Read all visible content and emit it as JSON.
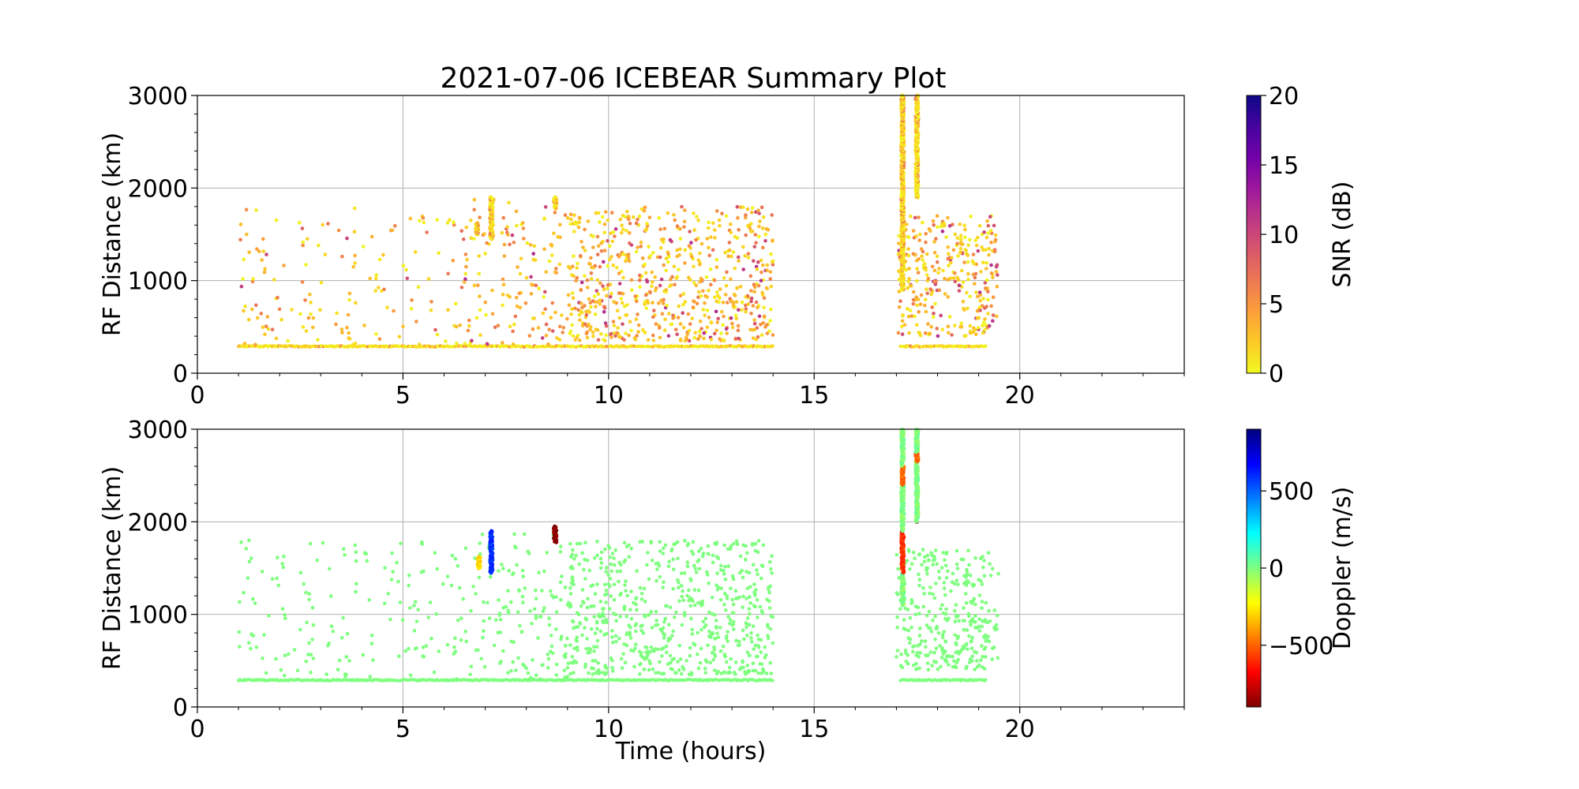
{
  "title": "2021-07-06 ICEBEAR Summary Plot",
  "chart_data": [
    {
      "type": "scatter",
      "panel": "top",
      "title": "2021-07-06 ICEBEAR Summary Plot",
      "xlabel": "",
      "ylabel": "RF Distance (km)",
      "xlim": [
        0,
        24
      ],
      "ylim": [
        0,
        3000
      ],
      "xticks": [
        0,
        5,
        10,
        15,
        20
      ],
      "yticks": [
        0,
        1000,
        2000,
        3000
      ],
      "grid": true,
      "colorbar": {
        "label": "SNR (dB)",
        "range": [
          0,
          20
        ],
        "ticks": [
          0,
          5,
          10,
          15,
          20
        ],
        "colormap": "plasma_r",
        "colors": [
          "#f0f921",
          "#fdca26",
          "#fb9f3a",
          "#ed7953",
          "#d8576b",
          "#bd3786",
          "#9c179e",
          "#7201a8",
          "#46039f",
          "#0d0887"
        ]
      },
      "baseline": {
        "y": 290,
        "segments": [
          [
            1.0,
            14.0
          ],
          [
            17.1,
            19.2
          ]
        ]
      },
      "background": {
        "segments": [
          {
            "x": [
              1.0,
              6.5
            ],
            "y": [
              300,
              1800
            ],
            "count": 150
          },
          {
            "x": [
              6.5,
              9.0
            ],
            "y": [
              300,
              1900
            ],
            "count": 140
          },
          {
            "x": [
              9.0,
              14.0
            ],
            "y": [
              350,
              1800
            ],
            "count": 650
          },
          {
            "x": [
              17.0,
              19.5
            ],
            "y": [
              400,
              1700
            ],
            "count": 320
          }
        ]
      },
      "streaks": [
        {
          "x": 7.15,
          "y": [
            1450,
            1900
          ],
          "weight": 1
        },
        {
          "x": 6.8,
          "y": [
            1500,
            1620
          ],
          "weight": 1
        },
        {
          "x": 8.7,
          "y": [
            1780,
            1900
          ],
          "weight": 1
        },
        {
          "x": 17.15,
          "y": [
            900,
            3000
          ],
          "weight": 1
        },
        {
          "x": 17.5,
          "y": [
            1900,
            3000
          ],
          "weight": 1
        }
      ]
    },
    {
      "type": "scatter",
      "panel": "bottom",
      "title": "",
      "xlabel": "Time (hours)",
      "ylabel": "RF Distance (km)",
      "xlim": [
        0,
        24
      ],
      "ylim": [
        0,
        3000
      ],
      "xticks": [
        0,
        5,
        10,
        15,
        20
      ],
      "yticks": [
        0,
        1000,
        2000,
        3000
      ],
      "grid": true,
      "colorbar": {
        "label": "Doppler (m/s)",
        "range": [
          -900,
          900
        ],
        "ticks": [
          -500,
          0,
          500
        ],
        "tick_labels": [
          "−500",
          "0",
          "500"
        ],
        "colormap": "jet_r",
        "colors": [
          "#7f0000",
          "#ff0000",
          "#ff7f00",
          "#ffff00",
          "#7fff7f",
          "#00ffff",
          "#007fff",
          "#0000ff",
          "#00007f"
        ]
      },
      "baseline": {
        "y": 290,
        "segments": [
          [
            1.0,
            14.0
          ],
          [
            17.1,
            19.2
          ]
        ]
      },
      "background": {
        "segments": [
          {
            "x": [
              1.0,
              6.5
            ],
            "y": [
              300,
              1800
            ],
            "count": 150
          },
          {
            "x": [
              6.5,
              9.0
            ],
            "y": [
              300,
              1900
            ],
            "count": 140
          },
          {
            "x": [
              9.0,
              14.0
            ],
            "y": [
              350,
              1800
            ],
            "count": 650
          },
          {
            "x": [
              17.0,
              19.5
            ],
            "y": [
              400,
              1700
            ],
            "count": 320
          }
        ]
      },
      "streaks": [
        {
          "x": 7.15,
          "y": [
            1450,
            1900
          ],
          "doppler": 600
        },
        {
          "x": 6.85,
          "y": [
            1500,
            1620
          ],
          "doppler": -300
        },
        {
          "x": 8.7,
          "y": [
            1780,
            1950
          ],
          "doppler": -900
        },
        {
          "x": 17.15,
          "y": [
            1100,
            3000
          ],
          "doppler": 0,
          "patches": [
            {
              "y": [
                1450,
                1900
              ],
              "doppler": -600
            },
            {
              "y": [
                2400,
                2600
              ],
              "doppler": -500
            }
          ]
        },
        {
          "x": 17.5,
          "y": [
            2000,
            3000
          ],
          "doppler": 0,
          "patches": [
            {
              "y": [
                1900,
                2000
              ],
              "doppler": -900
            },
            {
              "y": [
                2650,
                2750
              ],
              "doppler": -500
            }
          ]
        }
      ]
    }
  ]
}
